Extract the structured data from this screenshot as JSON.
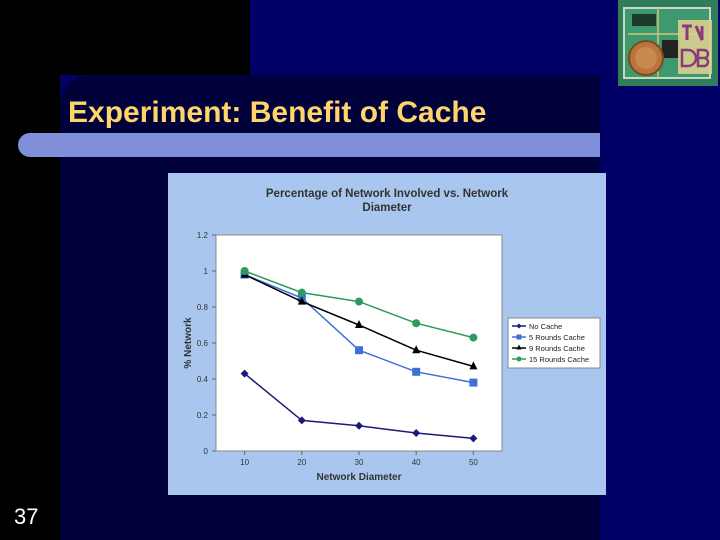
{
  "slide": {
    "title": "Experiment:  Benefit of Cache",
    "page_number": "37",
    "logo_icon": "circuit-board-logo-icon"
  },
  "chart_data": {
    "type": "line",
    "title": "Percentage of Network Involved vs. Network Diameter",
    "title_lines": [
      "Percentage of Network Involved vs. Network",
      "Diameter"
    ],
    "xlabel": "Network Diameter",
    "ylabel": "% Network",
    "x": [
      10,
      20,
      30,
      40,
      50
    ],
    "ylim": [
      0,
      1.2
    ],
    "yticks": [
      0,
      0.2,
      0.4,
      0.6,
      0.8,
      1,
      1.2
    ],
    "grid": false,
    "legend_position": "right",
    "series": [
      {
        "name": "No Cache",
        "values": [
          0.43,
          0.17,
          0.14,
          0.1,
          0.07
        ],
        "color": "#1a1a7a",
        "marker": "diamond"
      },
      {
        "name": "5 Rounds Cache",
        "values": [
          0.98,
          0.85,
          0.56,
          0.44,
          0.38
        ],
        "color": "#3f6fd8",
        "marker": "square"
      },
      {
        "name": "9 Rounds Cache",
        "values": [
          0.98,
          0.83,
          0.7,
          0.56,
          0.47
        ],
        "color": "#000000",
        "marker": "triangle"
      },
      {
        "name": "15 Rounds Cache",
        "values": [
          1.0,
          0.88,
          0.83,
          0.71,
          0.63
        ],
        "color": "#2e9b5e",
        "marker": "circle"
      }
    ]
  }
}
